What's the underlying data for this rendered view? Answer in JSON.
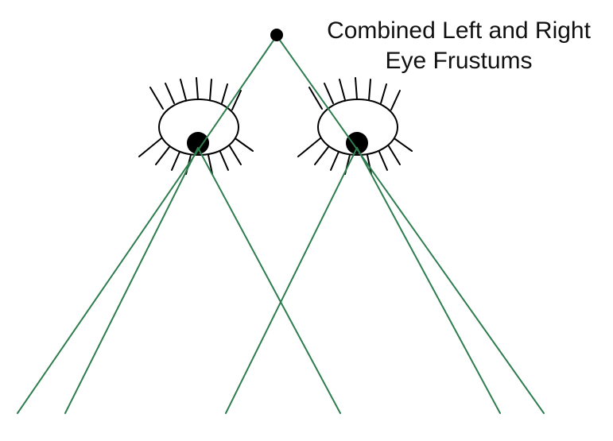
{
  "caption": {
    "line1": "Combined Left and Right",
    "line2": "Eye Frustums"
  },
  "colors": {
    "frustum_line": "#2e7d4f",
    "ink": "#000000",
    "background": "#ffffff"
  },
  "icons": {
    "left_eye": "eye-icon",
    "right_eye": "eye-icon",
    "combined_apex": "point-marker"
  }
}
